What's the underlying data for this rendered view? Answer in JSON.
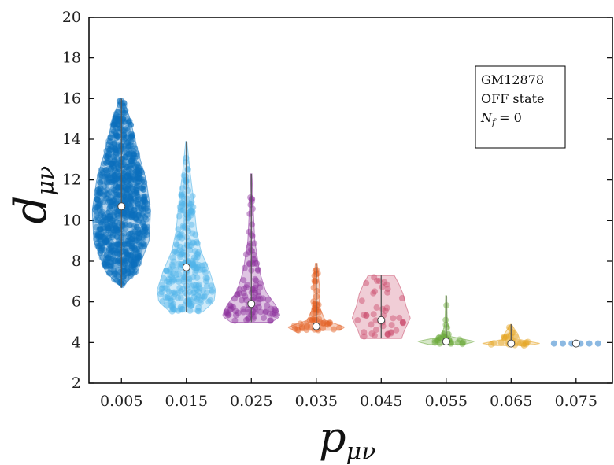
{
  "chart_data": {
    "type": "violin",
    "xlabel": "p",
    "xlabel_sub": "μν",
    "ylabel": "d",
    "ylabel_sub": "μν",
    "ylim": [
      2,
      20
    ],
    "yticks": [
      "2",
      "4",
      "6",
      "8",
      "10",
      "12",
      "14",
      "16",
      "18",
      "20"
    ],
    "categories": [
      "0.005",
      "0.015",
      "0.025",
      "0.035",
      "0.045",
      "0.055",
      "0.065",
      "0.075"
    ],
    "violins": [
      {
        "category": "0.005",
        "color": "#0a6fbd",
        "min": 6.7,
        "max": 16.0,
        "median": 10.7,
        "points": 900,
        "profile": [
          [
            6.7,
            0.0
          ],
          [
            7.5,
            0.55
          ],
          [
            9.0,
            0.95
          ],
          [
            10.5,
            1.0
          ],
          [
            12.0,
            0.85
          ],
          [
            13.5,
            0.55
          ],
          [
            15.0,
            0.3
          ],
          [
            16.0,
            0.05
          ]
        ]
      },
      {
        "category": "0.015",
        "color": "#4fb3e8",
        "min": 5.5,
        "max": 13.9,
        "median": 7.7,
        "points": 260,
        "profile": [
          [
            5.5,
            0.55
          ],
          [
            6.0,
            0.95
          ],
          [
            6.6,
            1.0
          ],
          [
            7.5,
            0.8
          ],
          [
            8.5,
            0.5
          ],
          [
            9.5,
            0.35
          ],
          [
            11.0,
            0.25
          ],
          [
            12.5,
            0.12
          ],
          [
            13.9,
            0.02
          ]
        ]
      },
      {
        "category": "0.025",
        "color": "#8b2f9c",
        "min": 5.0,
        "max": 12.3,
        "median": 5.9,
        "points": 110,
        "profile": [
          [
            5.0,
            0.7
          ],
          [
            5.3,
            1.0
          ],
          [
            5.8,
            0.85
          ],
          [
            6.5,
            0.5
          ],
          [
            7.5,
            0.28
          ],
          [
            9.0,
            0.12
          ],
          [
            10.5,
            0.07
          ],
          [
            12.3,
            0.02
          ]
        ]
      },
      {
        "category": "0.035",
        "color": "#e35d1f",
        "min": 4.6,
        "max": 7.9,
        "median": 4.8,
        "points": 55,
        "profile": [
          [
            4.6,
            0.75
          ],
          [
            4.75,
            1.0
          ],
          [
            5.1,
            0.3
          ],
          [
            5.8,
            0.1
          ],
          [
            6.6,
            0.12
          ],
          [
            7.2,
            0.08
          ],
          [
            7.9,
            0.03
          ]
        ]
      },
      {
        "category": "0.045",
        "color": "#c94a6a",
        "min": 4.2,
        "max": 7.3,
        "median": 5.1,
        "points": 45,
        "profile": [
          [
            4.2,
            0.7
          ],
          [
            4.6,
            0.8
          ],
          [
            5.2,
            1.0
          ],
          [
            5.8,
            0.85
          ],
          [
            6.4,
            0.75
          ],
          [
            6.9,
            0.6
          ],
          [
            7.3,
            0.45
          ]
        ]
      },
      {
        "category": "0.055",
        "color": "#6aa83a",
        "min": 3.9,
        "max": 6.3,
        "median": 4.05,
        "points": 30,
        "profile": [
          [
            3.9,
            0.6
          ],
          [
            4.05,
            1.0
          ],
          [
            4.3,
            0.15
          ],
          [
            5.0,
            0.04
          ],
          [
            5.6,
            0.03
          ],
          [
            6.3,
            0.02
          ]
        ]
      },
      {
        "category": "0.065",
        "color": "#e5a321",
        "min": 3.85,
        "max": 4.9,
        "median": 3.95,
        "points": 28,
        "profile": [
          [
            3.85,
            0.5
          ],
          [
            3.95,
            1.0
          ],
          [
            4.15,
            0.3
          ],
          [
            4.45,
            0.22
          ],
          [
            4.7,
            0.1
          ],
          [
            4.9,
            0.02
          ]
        ]
      },
      {
        "category": "0.075",
        "color": "#5b9bd5",
        "min": 3.95,
        "max": 3.95,
        "median": 3.95,
        "points": 6,
        "profile": []
      }
    ],
    "legend": {
      "line1": "GM12878",
      "line2": "OFF state",
      "line3_symbol": "N",
      "line3_sub": "f",
      "line3_rest": " = 0",
      "position": "top-right"
    }
  }
}
